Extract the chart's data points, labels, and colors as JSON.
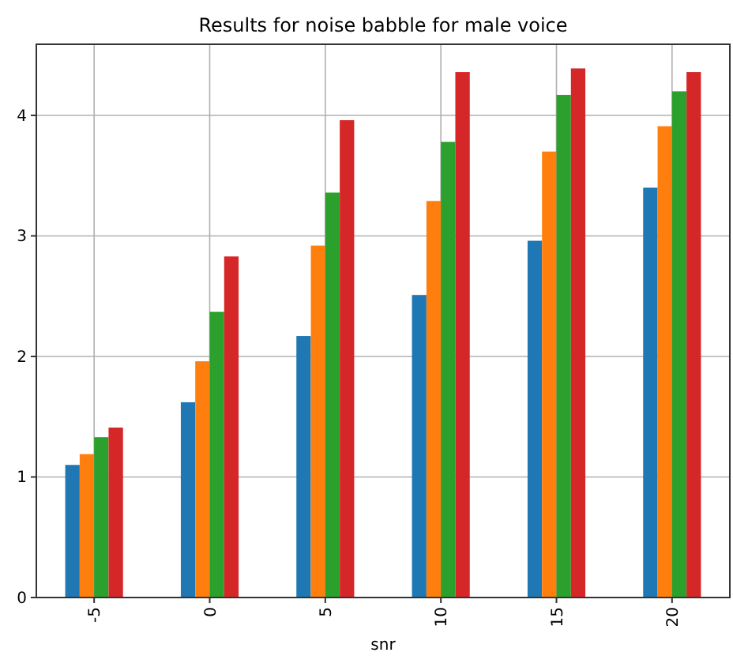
{
  "chart_data": {
    "type": "bar",
    "title": "Results for noise babble for male voice",
    "xlabel": "snr",
    "categories": [
      "-5",
      "0",
      "5",
      "10",
      "15",
      "20"
    ],
    "series": [
      {
        "color": "#1f77b4",
        "values": [
          1.1,
          1.62,
          2.17,
          2.51,
          2.96,
          3.4
        ]
      },
      {
        "color": "#ff7f0e",
        "values": [
          1.19,
          1.96,
          2.92,
          3.29,
          3.7,
          3.91
        ]
      },
      {
        "color": "#2ca02c",
        "values": [
          1.33,
          2.37,
          3.36,
          3.78,
          4.17,
          4.2
        ]
      },
      {
        "color": "#d62728",
        "values": [
          1.41,
          2.83,
          3.96,
          4.36,
          4.39,
          4.36
        ]
      }
    ],
    "ylim": [
      0,
      4.59
    ],
    "yticks": [
      0,
      1,
      2,
      3,
      4
    ],
    "grid": true
  }
}
